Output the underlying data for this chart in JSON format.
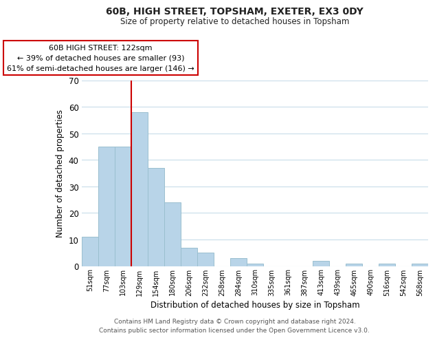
{
  "title": "60B, HIGH STREET, TOPSHAM, EXETER, EX3 0DY",
  "subtitle": "Size of property relative to detached houses in Topsham",
  "xlabel": "Distribution of detached houses by size in Topsham",
  "ylabel": "Number of detached properties",
  "bar_color": "#b8d4e8",
  "bar_edge_color": "#9abfcf",
  "categories": [
    "51sqm",
    "77sqm",
    "103sqm",
    "129sqm",
    "154sqm",
    "180sqm",
    "206sqm",
    "232sqm",
    "258sqm",
    "284sqm",
    "310sqm",
    "335sqm",
    "361sqm",
    "387sqm",
    "413sqm",
    "439sqm",
    "465sqm",
    "490sqm",
    "516sqm",
    "542sqm",
    "568sqm"
  ],
  "values": [
    11,
    45,
    45,
    58,
    37,
    24,
    7,
    5,
    0,
    3,
    1,
    0,
    0,
    0,
    2,
    0,
    1,
    0,
    1,
    0,
    1
  ],
  "ylim": [
    0,
    70
  ],
  "yticks": [
    0,
    10,
    20,
    30,
    40,
    50,
    60,
    70
  ],
  "vline_x_index": 3,
  "vline_color": "#cc0000",
  "annotation_text": "60B HIGH STREET: 122sqm\n← 39% of detached houses are smaller (93)\n61% of semi-detached houses are larger (146) →",
  "annotation_box_color": "#ffffff",
  "annotation_box_edge": "#cc0000",
  "footer_line1": "Contains HM Land Registry data © Crown copyright and database right 2024.",
  "footer_line2": "Contains public sector information licensed under the Open Government Licence v3.0.",
  "background_color": "#ffffff",
  "grid_color": "#c8dcea"
}
